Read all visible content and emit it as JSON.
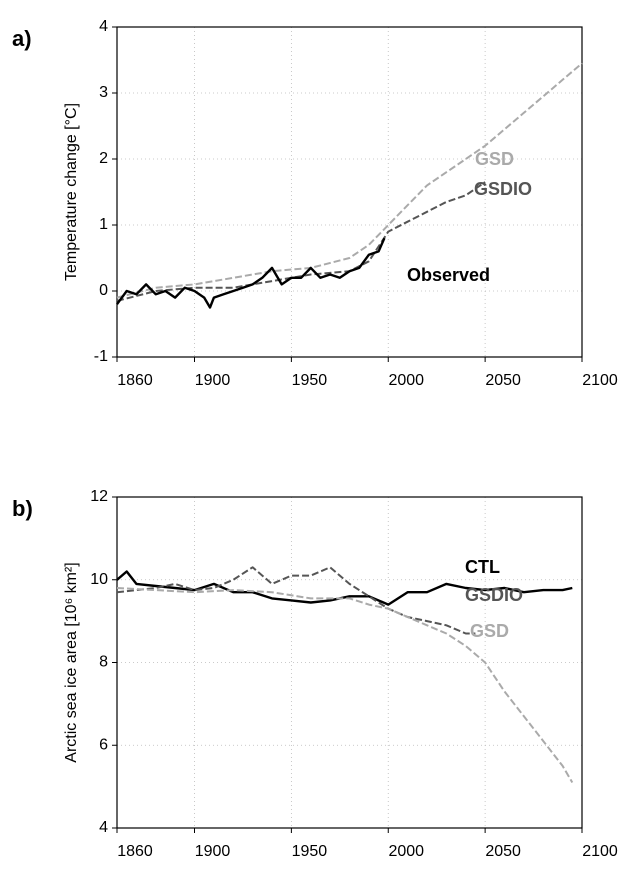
{
  "chart_data": [
    {
      "type": "line",
      "panel_label": "a)",
      "y_label": "Temperature change [°C]",
      "xlim": [
        1860,
        2100
      ],
      "xticks": [
        1860,
        1900,
        1950,
        2000,
        2050,
        2100
      ],
      "ylim": [
        -1,
        4
      ],
      "yticks": [
        -1,
        0,
        1,
        2,
        3,
        4
      ],
      "grid": true,
      "series": [
        {
          "name": "GSD",
          "color": "#aaaaaa",
          "style": "dashed",
          "x": [
            1860,
            1880,
            1900,
            1920,
            1940,
            1960,
            1980,
            1990,
            2000,
            2010,
            2020,
            2030,
            2040,
            2050,
            2060,
            2070,
            2080,
            2090,
            2100
          ],
          "values": [
            -0.1,
            0.05,
            0.1,
            0.2,
            0.3,
            0.35,
            0.5,
            0.7,
            1.0,
            1.3,
            1.6,
            1.8,
            2.0,
            2.2,
            2.45,
            2.7,
            2.95,
            3.2,
            3.45
          ]
        },
        {
          "name": "GSDIO",
          "color": "#555555",
          "style": "dashed",
          "x": [
            1860,
            1880,
            1900,
            1920,
            1940,
            1960,
            1980,
            1990,
            2000,
            2010,
            2020,
            2030,
            2040,
            2050
          ],
          "values": [
            -0.15,
            0,
            0.05,
            0.05,
            0.15,
            0.25,
            0.3,
            0.45,
            0.9,
            1.05,
            1.2,
            1.35,
            1.45,
            1.65
          ]
        },
        {
          "name": "Observed",
          "color": "#000000",
          "style": "solid",
          "x": [
            1860,
            1865,
            1870,
            1875,
            1880,
            1885,
            1890,
            1895,
            1900,
            1905,
            1908,
            1910,
            1915,
            1920,
            1925,
            1930,
            1935,
            1940,
            1945,
            1950,
            1955,
            1960,
            1965,
            1970,
            1975,
            1980,
            1985,
            1990,
            1995,
            1998
          ],
          "values": [
            -0.2,
            0,
            -0.05,
            0.1,
            -0.05,
            0,
            -0.1,
            0.05,
            0,
            -0.1,
            -0.25,
            -0.1,
            -0.05,
            0,
            0.05,
            0.1,
            0.2,
            0.35,
            0.1,
            0.2,
            0.2,
            0.35,
            0.2,
            0.25,
            0.2,
            0.3,
            0.35,
            0.55,
            0.6,
            0.8
          ]
        }
      ]
    },
    {
      "type": "line",
      "panel_label": "b)",
      "y_label": "Arctic sea ice area [10⁶ km²]",
      "xlim": [
        1860,
        2100
      ],
      "xticks": [
        1860,
        1900,
        1950,
        2000,
        2050,
        2100
      ],
      "ylim": [
        4,
        12
      ],
      "yticks": [
        4,
        6,
        8,
        10,
        12
      ],
      "grid": true,
      "series": [
        {
          "name": "CTL",
          "color": "#000000",
          "style": "solid",
          "x": [
            1860,
            1865,
            1870,
            1880,
            1890,
            1900,
            1910,
            1920,
            1930,
            1940,
            1950,
            1960,
            1970,
            1980,
            1990,
            2000,
            2010,
            2020,
            2030,
            2040,
            2050,
            2060,
            2070,
            2080,
            2090,
            2095
          ],
          "values": [
            10.0,
            10.2,
            9.9,
            9.85,
            9.8,
            9.75,
            9.9,
            9.7,
            9.7,
            9.55,
            9.5,
            9.45,
            9.5,
            9.6,
            9.6,
            9.4,
            9.7,
            9.7,
            9.9,
            9.8,
            9.75,
            9.8,
            9.7,
            9.75,
            9.75,
            9.8
          ]
        },
        {
          "name": "GSDIO",
          "color": "#555555",
          "style": "dashed",
          "x": [
            1860,
            1880,
            1890,
            1900,
            1910,
            1920,
            1930,
            1940,
            1950,
            1960,
            1970,
            1980,
            1990,
            2000,
            2010,
            2020,
            2030,
            2040,
            2045
          ],
          "values": [
            9.7,
            9.8,
            9.9,
            9.75,
            9.8,
            10.0,
            10.3,
            9.9,
            10.1,
            10.1,
            10.3,
            9.9,
            9.6,
            9.3,
            9.1,
            9.0,
            8.9,
            8.7,
            8.7
          ]
        },
        {
          "name": "GSD",
          "color": "#aaaaaa",
          "style": "dashed",
          "x": [
            1860,
            1880,
            1900,
            1920,
            1940,
            1960,
            1980,
            1990,
            2000,
            2010,
            2020,
            2030,
            2040,
            2050,
            2060,
            2070,
            2080,
            2090,
            2095
          ],
          "values": [
            9.8,
            9.75,
            9.7,
            9.75,
            9.7,
            9.55,
            9.55,
            9.4,
            9.3,
            9.1,
            8.9,
            8.7,
            8.4,
            8.0,
            7.3,
            6.7,
            6.1,
            5.5,
            5.1
          ]
        }
      ]
    }
  ]
}
